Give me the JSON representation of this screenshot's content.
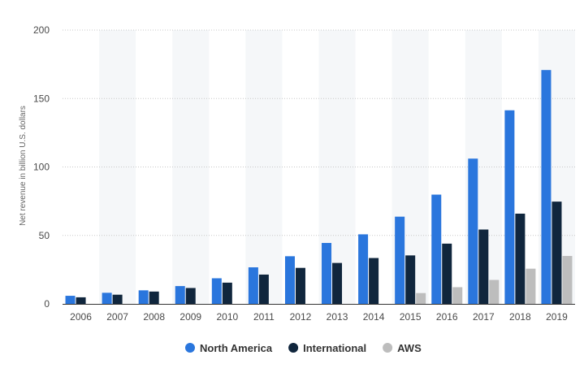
{
  "chart_data": {
    "type": "bar",
    "title": "",
    "xlabel": "",
    "ylabel": "Net revenue in billion U.S. dollars",
    "ylim": [
      0,
      200
    ],
    "yticks": [
      0,
      50,
      100,
      150,
      200
    ],
    "categories": [
      "2006",
      "2007",
      "2008",
      "2009",
      "2010",
      "2011",
      "2012",
      "2013",
      "2014",
      "2015",
      "2016",
      "2017",
      "2018",
      "2019"
    ],
    "series": [
      {
        "name": "North America",
        "color": "#2a76dd",
        "values": [
          5.9,
          8.1,
          9.9,
          13.0,
          18.7,
          26.7,
          34.8,
          44.5,
          50.8,
          63.7,
          79.8,
          106.1,
          141.4,
          170.8
        ]
      },
      {
        "name": "International",
        "color": "#10263d",
        "values": [
          4.8,
          6.7,
          9.0,
          11.6,
          15.5,
          21.4,
          26.3,
          29.9,
          33.5,
          35.4,
          44.0,
          54.3,
          65.9,
          74.7
        ]
      },
      {
        "name": "AWS",
        "color": "#bdbdbd",
        "values": [
          null,
          null,
          null,
          null,
          null,
          null,
          null,
          null,
          null,
          7.9,
          12.2,
          17.5,
          25.7,
          35.0
        ]
      }
    ],
    "grid": true,
    "grid_style": "dotted",
    "alternating_column_shading": true,
    "legend_position": "bottom-center"
  }
}
